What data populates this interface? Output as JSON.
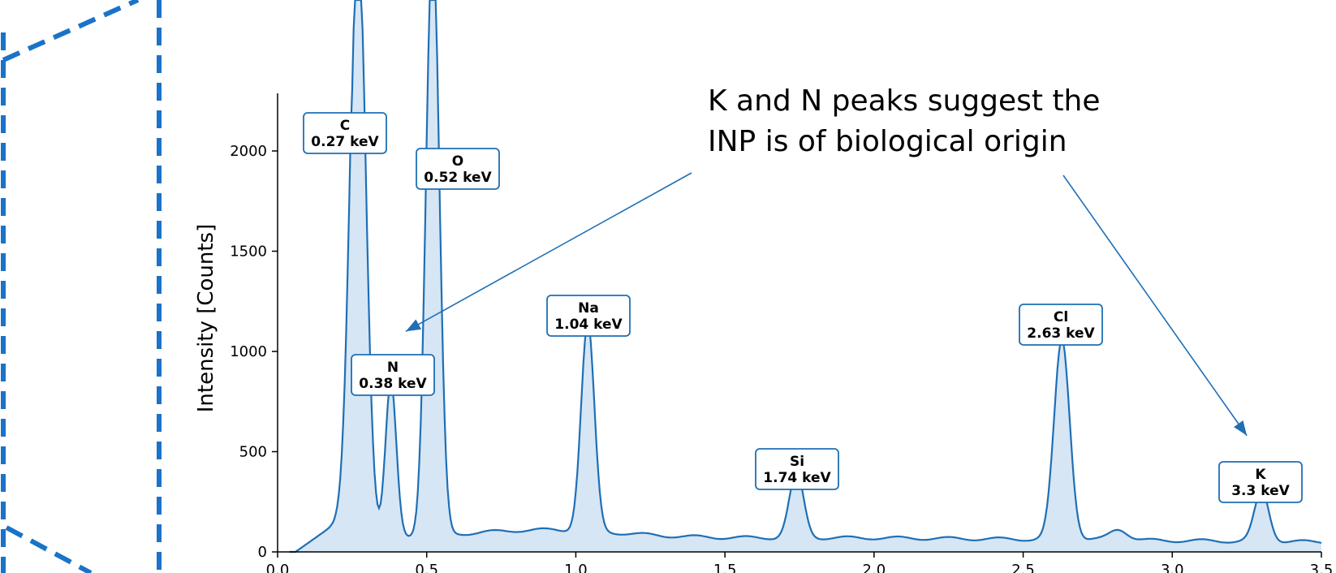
{
  "chart_data": {
    "type": "area",
    "title": "",
    "xlabel": "",
    "ylabel": "Intensity [Counts]",
    "xlim": [
      0.0,
      3.5
    ],
    "ylim": [
      0,
      2300
    ],
    "grid": false,
    "x_ticks": [
      "0.0",
      "0.5",
      "1.0",
      "1.5",
      "2.0",
      "2.5",
      "3.0",
      "3.5"
    ],
    "y_ticks": [
      "0",
      "500",
      "1000",
      "1500",
      "2000"
    ],
    "colors": {
      "line": "#1f6fb5",
      "fill": "#d6e6f5",
      "box_border": "#1f6fb5",
      "frame": "#1a73c8"
    },
    "peaks": [
      {
        "element": "C",
        "energy_label": "0.27 keV",
        "energy": 0.27,
        "counts": 3000
      },
      {
        "element": "N",
        "energy_label": "0.38 keV",
        "energy": 0.38,
        "counts": 770
      },
      {
        "element": "O",
        "energy_label": "0.52 keV",
        "energy": 0.52,
        "counts": 3000
      },
      {
        "element": "Na",
        "energy_label": "1.04 keV",
        "energy": 1.04,
        "counts": 1040
      },
      {
        "element": "Si",
        "energy_label": "1.74 keV",
        "energy": 1.74,
        "counts": 320
      },
      {
        "element": "Cl",
        "energy_label": "2.63 keV",
        "energy": 2.63,
        "counts": 1000
      },
      {
        "element": "K",
        "energy_label": "3.3 keV",
        "energy": 3.3,
        "counts": 250
      }
    ],
    "annotation": {
      "lines": [
        "K and N peaks suggest the",
        "INP is of biological origin"
      ],
      "arrow_targets": [
        {
          "element": "N",
          "x": 0.43,
          "y": 1100
        },
        {
          "element": "K",
          "x": 3.25,
          "y": 580
        }
      ]
    }
  }
}
